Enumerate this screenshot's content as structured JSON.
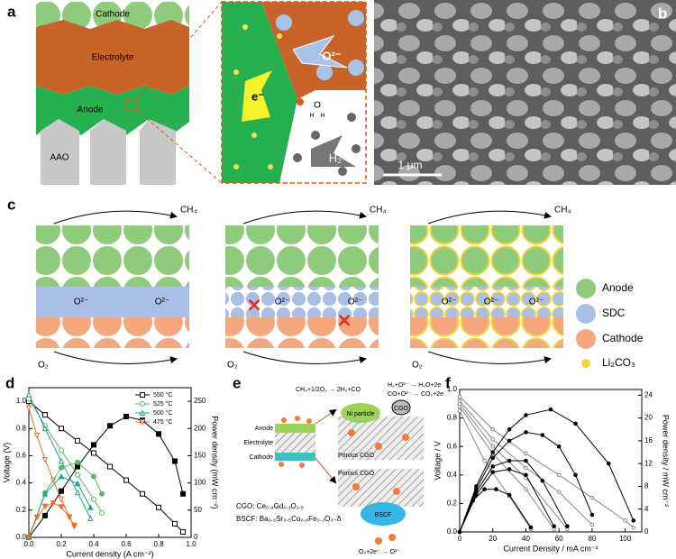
{
  "panel_labels": [
    "a",
    "b",
    "c",
    "d",
    "e",
    "f"
  ],
  "panel_a": {
    "layers": [
      "Cathode",
      "Electrolyte",
      "Anode",
      "AAO"
    ],
    "oxide_ion": "O²⁻",
    "electron": "e⁻",
    "hydrogen": "H₂",
    "atoms": [
      "O",
      "H",
      "H"
    ]
  },
  "panel_b": {
    "scale_bar": "1 μm"
  },
  "panel_c": {
    "gas_top": "CH₄",
    "gas_bottom": "O₂",
    "ion": "O²⁻",
    "legend": [
      "Anode",
      "SDC",
      "Cathode",
      "Li₂CO₃"
    ]
  },
  "panel_e": {
    "reforming": "CH₄+1/2O₂ → 2H₂+CO",
    "h2_oxidation": "H₂+O²⁻ → H₂O+2e",
    "co_oxidation": "CO+O²⁻ → CO₂+2e",
    "layers": [
      "Anode",
      "Electrolyte",
      "Cathode"
    ],
    "ni": "Ni particle",
    "cgo": "CGO",
    "porous": "Porous CGO",
    "bscf": "BSCF",
    "cgo_formula": "CGO: Ce₀.₉Gd₀.₁O₁.₉",
    "bscf_formula": "BSCF: Ba₀.₅Sr₀.₅Co₀.₈Fe₀.₂O₃₋δ",
    "reduction": "O₂+2e⁻ → O²⁻"
  },
  "chart_data": [
    {
      "type": "line",
      "x_label": "Current density (A cm⁻²)",
      "y_label": "Voltage (V)",
      "y2_label": "Power density (mW cm⁻²)",
      "xlim": [
        0,
        1.0
      ],
      "xticks": [
        {
          "value": 0,
          "label": "0.0"
        },
        0.2,
        0.4,
        0.6,
        0.8,
        {
          "value": 1,
          "label": "1.0"
        }
      ],
      "ylim": [
        0,
        1.1
      ],
      "yticks": [
        {
          "value": 0,
          "label": "0.0"
        },
        0.2,
        0.4,
        0.6,
        0.8,
        {
          "value": 1,
          "label": "1.0"
        }
      ],
      "y2lim": [
        0,
        275
      ],
      "y2ticks": [
        0,
        50,
        100,
        150,
        200,
        250
      ],
      "legend": "upper right",
      "series": [
        {
          "name": "550 °C",
          "color": "#000000",
          "marker": "square",
          "filled": false,
          "x": [
            0,
            0.1,
            0.2,
            0.3,
            0.4,
            0.5,
            0.6,
            0.7,
            0.8,
            0.9,
            0.95
          ],
          "values": [
            1.0,
            0.9,
            0.8,
            0.71,
            0.62,
            0.52,
            0.42,
            0.32,
            0.22,
            0.1,
            0.04
          ]
        },
        {
          "name": "525 °C",
          "color": "#5cb85c",
          "marker": "circle",
          "filled": false,
          "x": [
            0,
            0.1,
            0.2,
            0.3,
            0.4,
            0.45
          ],
          "values": [
            1.02,
            0.82,
            0.64,
            0.46,
            0.28,
            0.18
          ]
        },
        {
          "name": "500 °C",
          "color": "#1fa39a",
          "marker": "triangle-up",
          "filled": false,
          "x": [
            0,
            0.1,
            0.2,
            0.3,
            0.38
          ],
          "values": [
            1.05,
            0.8,
            0.56,
            0.33,
            0.14
          ]
        },
        {
          "name": "475 °C",
          "color": "#f26b21",
          "marker": "triangle-down",
          "filled": false,
          "x": [
            0,
            0.05,
            0.1,
            0.15,
            0.2,
            0.25,
            0.28
          ],
          "values": [
            0.95,
            0.75,
            0.57,
            0.42,
            0.28,
            0.15,
            0.08
          ]
        },
        {
          "color": "#000000",
          "marker": "square",
          "filled": true,
          "axis": "y2",
          "x": [
            0,
            0.1,
            0.2,
            0.3,
            0.4,
            0.5,
            0.6,
            0.7,
            0.8,
            0.9,
            0.95
          ],
          "values": [
            0,
            40,
            85,
            130,
            170,
            205,
            222,
            215,
            190,
            140,
            80
          ]
        },
        {
          "color": "#5cb85c",
          "marker": "circle",
          "filled": true,
          "axis": "y2",
          "x": [
            0,
            0.1,
            0.2,
            0.3,
            0.4,
            0.45
          ],
          "values": [
            0,
            82,
            128,
            138,
            112,
            80
          ]
        },
        {
          "color": "#1fa39a",
          "marker": "triangle-up",
          "filled": true,
          "axis": "y2",
          "x": [
            0,
            0.1,
            0.2,
            0.3,
            0.38
          ],
          "values": [
            0,
            80,
            112,
            99,
            55
          ]
        },
        {
          "color": "#f26b21",
          "marker": "triangle-down",
          "filled": true,
          "axis": "y2",
          "x": [
            0,
            0.05,
            0.1,
            0.15,
            0.2,
            0.25,
            0.28
          ],
          "values": [
            0,
            37,
            57,
            63,
            56,
            37,
            22
          ]
        }
      ]
    },
    {
      "type": "line",
      "x_label": "Current Density / mA cm⁻²",
      "y_label": "Voltage / V",
      "y2_label": "Power density / mW cm⁻²",
      "xlim": [
        0,
        110
      ],
      "xticks": [
        0,
        20,
        40,
        60,
        80,
        100
      ],
      "ylim": [
        0,
        1.0
      ],
      "yticks": [
        {
          "value": 0,
          "label": "0.0"
        },
        0.2,
        0.4,
        0.6,
        0.8,
        {
          "value": 1,
          "label": "1.0"
        }
      ],
      "y2lim": [
        0,
        25
      ],
      "y2ticks": [
        0,
        4,
        8,
        12,
        16,
        20,
        24
      ],
      "series": [
        {
          "color": "#888888",
          "marker": "circle",
          "filled": false,
          "x": [
            0,
            20,
            40,
            60,
            80,
            100,
            105
          ],
          "values": [
            0.95,
            0.72,
            0.55,
            0.4,
            0.24,
            0.08,
            0.03
          ]
        },
        {
          "color": "#888888",
          "marker": "circle",
          "filled": false,
          "x": [
            0,
            20,
            40,
            60,
            80
          ],
          "values": [
            0.92,
            0.65,
            0.45,
            0.28,
            0.05
          ]
        },
        {
          "color": "#888888",
          "marker": "circle",
          "filled": false,
          "x": [
            0,
            20,
            40,
            65
          ],
          "values": [
            0.9,
            0.6,
            0.38,
            0.02
          ]
        },
        {
          "color": "#888888",
          "marker": "circle",
          "filled": false,
          "x": [
            0,
            20,
            40,
            57
          ],
          "values": [
            0.88,
            0.55,
            0.3,
            0.02
          ]
        },
        {
          "color": "#888888",
          "marker": "circle",
          "filled": false,
          "x": [
            0,
            15,
            30,
            43
          ],
          "values": [
            0.85,
            0.5,
            0.25,
            0.02
          ]
        },
        {
          "color": "#000000",
          "marker": "circle",
          "filled": true,
          "axis": "y2",
          "x": [
            0,
            10,
            20,
            30,
            40,
            55,
            70,
            90,
            105
          ],
          "values": [
            0,
            8,
            14,
            18,
            20.5,
            21.5,
            19,
            12,
            2
          ]
        },
        {
          "color": "#000000",
          "marker": "circle",
          "filled": true,
          "axis": "y2",
          "x": [
            0,
            10,
            20,
            30,
            40,
            50,
            60,
            70,
            80
          ],
          "values": [
            0,
            7.5,
            13,
            16,
            17.5,
            17,
            15,
            10,
            3
          ]
        },
        {
          "color": "#000000",
          "marker": "circle",
          "filled": true,
          "axis": "y2",
          "x": [
            0,
            10,
            20,
            30,
            40,
            50,
            65
          ],
          "values": [
            0,
            7,
            11.5,
            12.5,
            12.5,
            9,
            1
          ]
        },
        {
          "color": "#000000",
          "marker": "circle",
          "filled": true,
          "axis": "y2",
          "x": [
            0,
            10,
            20,
            30,
            40,
            57
          ],
          "values": [
            0,
            6.5,
            10.5,
            11,
            10,
            1
          ]
        },
        {
          "color": "#000000",
          "marker": "circle",
          "filled": true,
          "axis": "y2",
          "x": [
            0,
            8,
            15,
            22,
            30,
            43
          ],
          "values": [
            0,
            5.5,
            7.5,
            7.5,
            6.5,
            0.8
          ]
        }
      ]
    }
  ]
}
